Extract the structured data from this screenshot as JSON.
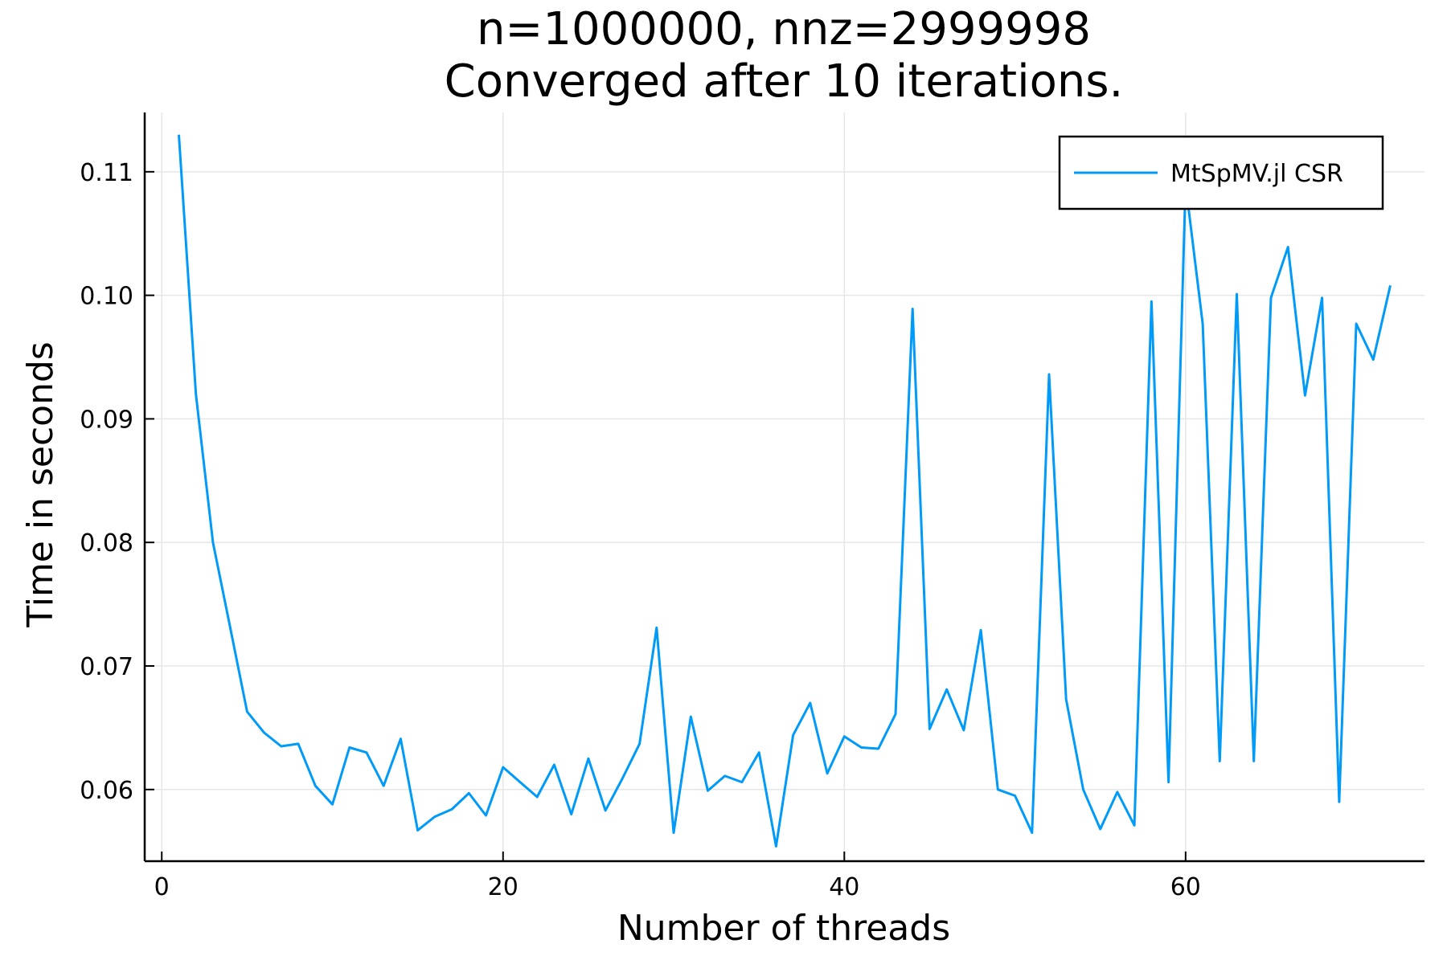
{
  "chart_data": {
    "type": "line",
    "title": [
      "n=1000000, nnz=2999998",
      "Converged after 10 iterations."
    ],
    "xlabel": "Number of threads",
    "ylabel": "Time in seconds",
    "xlim": [
      -1,
      74
    ],
    "ylim": [
      0.0542,
      0.1148
    ],
    "xticks": [
      0,
      20,
      40,
      60
    ],
    "xtick_labels": [
      "0",
      "20",
      "40",
      "60"
    ],
    "yticks": [
      0.06,
      0.07,
      0.08,
      0.09,
      0.1,
      0.11
    ],
    "ytick_labels": [
      "0.06",
      "0.07",
      "0.08",
      "0.09",
      "0.10",
      "0.11"
    ],
    "grid": true,
    "legend_position": "top-right",
    "series": [
      {
        "name": "MtSpMV.jl CSR",
        "color": "#009af9",
        "x": [
          1,
          2,
          3,
          4,
          5,
          6,
          7,
          8,
          9,
          10,
          11,
          12,
          13,
          14,
          15,
          16,
          17,
          18,
          19,
          20,
          21,
          22,
          23,
          24,
          25,
          26,
          27,
          28,
          29,
          30,
          31,
          32,
          33,
          34,
          35,
          36,
          37,
          38,
          39,
          40,
          41,
          42,
          43,
          44,
          45,
          46,
          47,
          48,
          49,
          50,
          51,
          52,
          53,
          54,
          55,
          56,
          57,
          58,
          59,
          60,
          61,
          62,
          63,
          64,
          65,
          66,
          67,
          68,
          69,
          70,
          71,
          72
        ],
        "values": [
          0.113,
          0.092,
          0.08,
          0.0732,
          0.0663,
          0.0646,
          0.0635,
          0.0637,
          0.0603,
          0.0588,
          0.0634,
          0.063,
          0.0603,
          0.0641,
          0.0567,
          0.0578,
          0.0584,
          0.0597,
          0.0579,
          0.0618,
          0.0606,
          0.0594,
          0.062,
          0.058,
          0.0625,
          0.0583,
          0.0609,
          0.0637,
          0.0731,
          0.0565,
          0.0659,
          0.0599,
          0.0611,
          0.0606,
          0.063,
          0.0554,
          0.0644,
          0.067,
          0.0613,
          0.0643,
          0.0634,
          0.0633,
          0.0661,
          0.0989,
          0.0649,
          0.0681,
          0.0648,
          0.0729,
          0.06,
          0.0595,
          0.0565,
          0.0936,
          0.0673,
          0.06,
          0.0568,
          0.0598,
          0.0571,
          0.0995,
          0.0606,
          0.109,
          0.0977,
          0.0623,
          0.1001,
          0.0623,
          0.0998,
          0.1039,
          0.0919,
          0.0998,
          0.059,
          0.0977,
          0.0948,
          0.1008
        ]
      }
    ]
  }
}
